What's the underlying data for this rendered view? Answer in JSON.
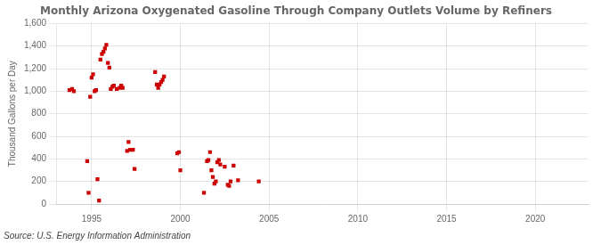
{
  "chart_data": {
    "type": "scatter",
    "title": "Monthly Arizona Oxygenated Gasoline Through Company Outlets Volume by Refiners",
    "ylabel": "Thousand Gallons per Day",
    "annotations": [
      "Source: U.S. Energy Information Administration"
    ],
    "color": "#cc0000",
    "marker": "square",
    "grid": true,
    "xlim": [
      1993.0,
      2023.0
    ],
    "ylim": [
      0,
      1600
    ],
    "xticks": [
      1995,
      2000,
      2005,
      2010,
      2015,
      2020
    ],
    "yticks": [
      0,
      200,
      400,
      600,
      800,
      {
        "value": 1000,
        "label": "1,000"
      },
      {
        "value": 1200,
        "label": "1,200"
      },
      {
        "value": 1400,
        "label": "1,400"
      },
      {
        "value": 1600,
        "label": "1,600"
      }
    ],
    "x": [
      1993.75,
      1993.9,
      1994.0,
      1994.75,
      1994.83,
      1994.92,
      1995.0,
      1995.08,
      1995.17,
      1995.25,
      1995.33,
      1995.42,
      1995.5,
      1995.58,
      1995.67,
      1995.75,
      1995.83,
      1995.92,
      1996.0,
      1996.08,
      1996.17,
      1996.25,
      1996.42,
      1996.58,
      1996.67,
      1996.75,
      1997.0,
      1997.08,
      1997.17,
      1997.33,
      1997.42,
      1998.58,
      1998.67,
      1998.75,
      1998.83,
      1998.92,
      1999.0,
      1999.08,
      1999.83,
      1999.92,
      2000.0,
      2001.33,
      2001.5,
      2001.58,
      2001.67,
      2001.75,
      2001.83,
      2001.92,
      2002.0,
      2002.08,
      2002.17,
      2002.25,
      2002.5,
      2002.67,
      2002.75,
      2002.83,
      2003.0,
      2003.25,
      2004.42
    ],
    "values": [
      1010,
      1020,
      1000,
      380,
      100,
      950,
      1120,
      1150,
      1000,
      1010,
      220,
      30,
      1280,
      1330,
      1350,
      1380,
      1410,
      1250,
      1210,
      1020,
      1040,
      1050,
      1020,
      1030,
      1050,
      1030,
      470,
      550,
      480,
      480,
      310,
      1170,
      1060,
      1030,
      1060,
      1080,
      1100,
      1130,
      450,
      460,
      300,
      100,
      380,
      390,
      460,
      300,
      240,
      180,
      200,
      370,
      390,
      350,
      330,
      170,
      160,
      200,
      340,
      210,
      200
    ]
  }
}
